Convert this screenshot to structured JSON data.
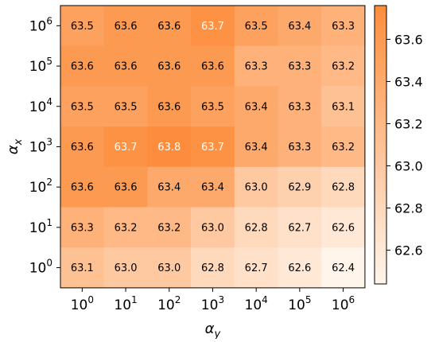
{
  "chart_data": {
    "type": "heatmap",
    "xlabel": "α",
    "xlabel_subscript": "y",
    "ylabel": "α",
    "ylabel_subscript": "x",
    "x_ticks": [
      {
        "base": "10",
        "exp": "0"
      },
      {
        "base": "10",
        "exp": "1"
      },
      {
        "base": "10",
        "exp": "2"
      },
      {
        "base": "10",
        "exp": "3"
      },
      {
        "base": "10",
        "exp": "4"
      },
      {
        "base": "10",
        "exp": "5"
      },
      {
        "base": "10",
        "exp": "6"
      }
    ],
    "y_ticks_top_to_bottom": [
      {
        "base": "10",
        "exp": "6"
      },
      {
        "base": "10",
        "exp": "5"
      },
      {
        "base": "10",
        "exp": "4"
      },
      {
        "base": "10",
        "exp": "3"
      },
      {
        "base": "10",
        "exp": "2"
      },
      {
        "base": "10",
        "exp": "1"
      },
      {
        "base": "10",
        "exp": "0"
      }
    ],
    "values_top_to_bottom": [
      [
        "63.5",
        "63.6",
        "63.6",
        "63.7",
        "63.5",
        "63.4",
        "63.3"
      ],
      [
        "63.6",
        "63.6",
        "63.6",
        "63.6",
        "63.3",
        "63.3",
        "63.2"
      ],
      [
        "63.5",
        "63.5",
        "63.6",
        "63.5",
        "63.4",
        "63.3",
        "63.1"
      ],
      [
        "63.6",
        "63.7",
        "63.8",
        "63.7",
        "63.4",
        "63.3",
        "63.2"
      ],
      [
        "63.6",
        "63.6",
        "63.4",
        "63.4",
        "63.0",
        "62.9",
        "62.8"
      ],
      [
        "63.3",
        "63.2",
        "63.2",
        "63.0",
        "62.8",
        "62.7",
        "62.6"
      ],
      [
        "63.1",
        "63.0",
        "63.0",
        "62.8",
        "62.7",
        "62.6",
        "62.4"
      ]
    ],
    "colorbar": {
      "range": [
        62.44,
        63.76
      ],
      "ticks": [
        "62.6",
        "62.8",
        "63.0",
        "63.2",
        "63.4",
        "63.6"
      ],
      "low_color": "#fff5eb",
      "high_color": "#fd8d3c"
    },
    "white_text_cells": [
      [
        0,
        3
      ],
      [
        3,
        1
      ],
      [
        3,
        2
      ],
      [
        3,
        3
      ]
    ]
  }
}
